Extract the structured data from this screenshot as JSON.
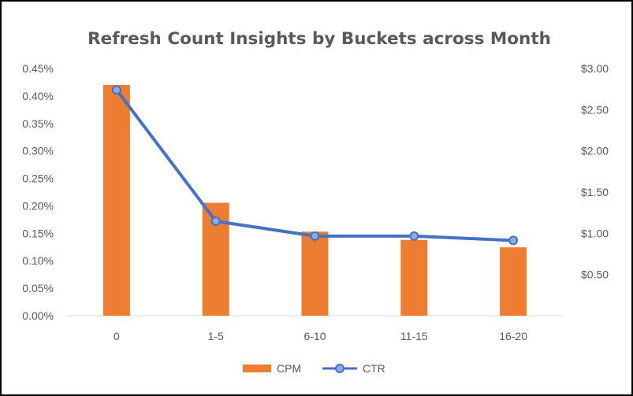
{
  "chart_data": {
    "type": "bar",
    "title": "Refresh Count Insights by Buckets across Month",
    "categories": [
      "0",
      "1-5",
      "6-10",
      "11-15",
      "16-20"
    ],
    "series": [
      {
        "name": "CPM",
        "type": "bar",
        "axis": "right",
        "color": "#ED7D31",
        "values": [
          2.8,
          1.37,
          1.02,
          0.92,
          0.83
        ]
      },
      {
        "name": "CTR",
        "type": "line",
        "axis": "left",
        "color": "#4472C4",
        "values": [
          0.00411,
          0.00172,
          0.00145,
          0.00145,
          0.00137
        ]
      }
    ],
    "y_left": {
      "lim": [
        0,
        0.0045
      ],
      "ticks": [
        "0.00%",
        "0.05%",
        "0.10%",
        "0.15%",
        "0.20%",
        "0.25%",
        "0.30%",
        "0.35%",
        "0.40%",
        "0.45%"
      ]
    },
    "y_right": {
      "lim": [
        0,
        3.0
      ],
      "ticks": [
        "$0.50",
        "$1.00",
        "$1.50",
        "$2.00",
        "$2.50",
        "$3.00"
      ],
      "tick_values": [
        0.5,
        1.0,
        1.5,
        2.0,
        2.5,
        3.0
      ]
    },
    "legend": {
      "position": "bottom",
      "entries": [
        "CPM",
        "CTR"
      ]
    },
    "grid": false
  }
}
